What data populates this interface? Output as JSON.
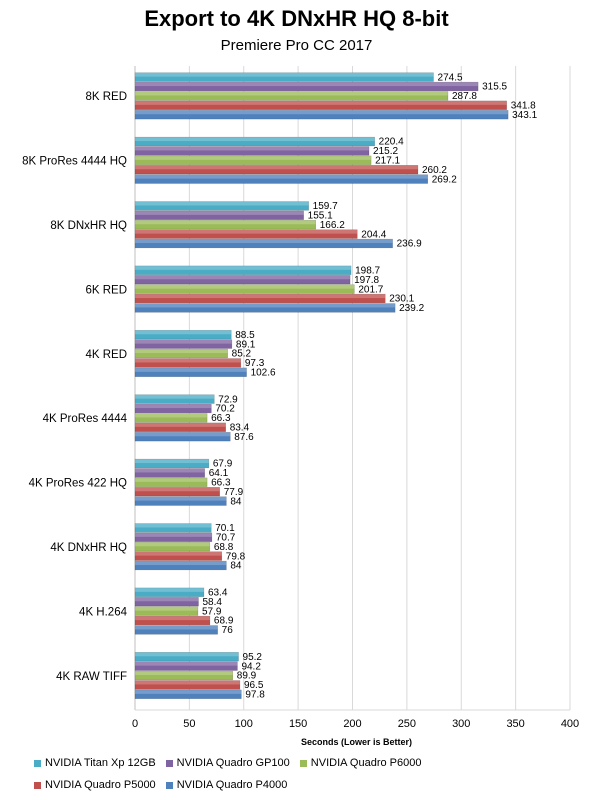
{
  "chart_data": {
    "type": "bar",
    "orientation": "horizontal",
    "title": "Export to 4K DNxHR HQ 8-bit",
    "subtitle": "Premiere Pro CC 2017",
    "xlabel": "Seconds (Lower is Better)",
    "ylabel": "",
    "xlim": [
      0,
      400
    ],
    "xticks": [
      "0",
      "50",
      "100",
      "150",
      "200",
      "250",
      "300",
      "350",
      "400"
    ],
    "grid": true,
    "legend_position": "bottom",
    "categories": [
      "8K RED",
      "8K ProRes 4444 HQ",
      "8K DNxHR HQ",
      "6K RED",
      "4K RED",
      "4K ProRes 4444",
      "4K ProRes 422 HQ",
      "4K DNxHR HQ",
      "4K H.264",
      "4K RAW TIFF"
    ],
    "series": [
      {
        "name": "NVIDIA Titan Xp 12GB",
        "color": "#4bacc6",
        "values": [
          274.5,
          220.4,
          159.7,
          198.7,
          88.5,
          72.9,
          67.9,
          70.1,
          63.4,
          95.2
        ],
        "labels": [
          "274.5",
          "220.4",
          "159.7",
          "198.7",
          "88.5",
          "72.9",
          "67.9",
          "70.1",
          "63.4",
          "95.2"
        ]
      },
      {
        "name": "NVIDIA Quadro GP100",
        "color": "#8064a2",
        "values": [
          315.5,
          215.2,
          155.1,
          197.8,
          89.1,
          70.2,
          64.1,
          70.7,
          58.4,
          94.2
        ],
        "labels": [
          "315.5",
          "215.2",
          "155.1",
          "197.8",
          "89.1",
          "70.2",
          "64.1",
          "70.7",
          "58.4",
          "94.2"
        ]
      },
      {
        "name": "NVIDIA Quadro P6000",
        "color": "#9bbb59",
        "values": [
          287.8,
          217.1,
          166.2,
          201.7,
          85.2,
          66.3,
          66.3,
          68.8,
          57.9,
          89.9
        ],
        "labels": [
          "287.8",
          "217.1",
          "166.2",
          "201.7",
          "85.2",
          "66.3",
          "66.3",
          "68.8",
          "57.9",
          "89.9"
        ]
      },
      {
        "name": "NVIDIA Quadro P5000",
        "color": "#c0504d",
        "values": [
          341.8,
          260.2,
          204.4,
          230.1,
          97.3,
          83.4,
          77.9,
          79.8,
          68.9,
          96.5
        ],
        "labels": [
          "341.8",
          "260.2",
          "204.4",
          "230.1",
          "97.3",
          "83.4",
          "77.9",
          "79.8",
          "68.9",
          "96.5"
        ]
      },
      {
        "name": "NVIDIA Quadro P4000",
        "color": "#4f81bd",
        "values": [
          343.1,
          269.2,
          236.9,
          239.2,
          102.6,
          87.6,
          84,
          84,
          76,
          97.8
        ],
        "labels": [
          "343.1",
          "269.2",
          "236.9",
          "239.2",
          "102.6",
          "87.6",
          "84",
          "84",
          "76",
          "97.8"
        ]
      }
    ]
  }
}
